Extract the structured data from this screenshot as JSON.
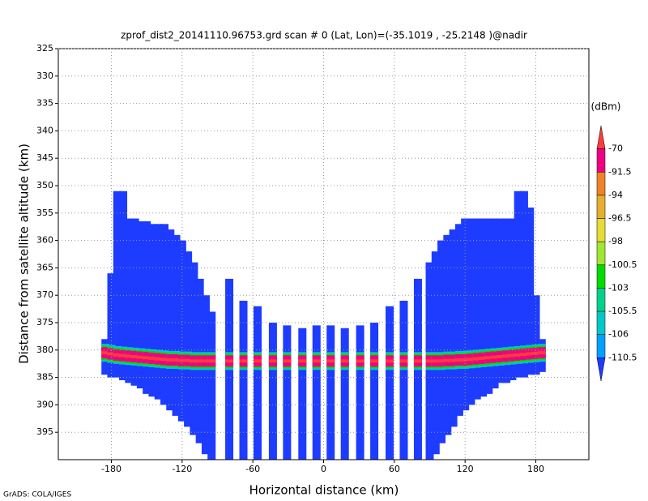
{
  "chart_data": {
    "type": "swath",
    "title": "zprof_dist2_20141110.96753.grd  scan # 0  (Lat, Lon)=(-35.1019 , -25.2148 )@nadir",
    "x_label": "Horizontal distance (km)",
    "y_label": "Distance from satellite altitude (km)",
    "colorbar_title": "(dBm)",
    "footer": "GrADS: COLA/IGES",
    "xlim": [
      -225,
      225
    ],
    "xticks": [
      -180,
      -120,
      -60,
      0,
      60,
      120,
      180
    ],
    "ylim": [
      325,
      400
    ],
    "yticks": [
      325,
      330,
      335,
      340,
      345,
      350,
      355,
      360,
      365,
      370,
      375,
      380,
      385,
      390,
      395
    ],
    "y_inverted": true,
    "grid": true,
    "levels": [
      -70,
      -91.5,
      -94,
      -96.5,
      -98,
      -100.5,
      -103,
      -105.5,
      -106,
      -110.5
    ],
    "colors": [
      "#fa3c3c",
      "#f00082",
      "#f08228",
      "#e6af2d",
      "#e6dc32",
      "#a0e632",
      "#00dc00",
      "#00d28c",
      "#00c8c8",
      "#00a0ff",
      "#1e3cff"
    ],
    "x": [
      -185,
      -180,
      -175,
      -170,
      -165,
      -160,
      -155,
      -150,
      -145,
      -140,
      -135,
      -130,
      -125,
      -120,
      -115,
      -110,
      -105,
      -100,
      -95,
      -80,
      -68,
      -56,
      -43,
      -31,
      -18,
      -6,
      6,
      18,
      31,
      43,
      56,
      68,
      80,
      90,
      95,
      100,
      105,
      110,
      115,
      120,
      125,
      130,
      135,
      140,
      145,
      150,
      155,
      160,
      165,
      170,
      175,
      180,
      185
    ],
    "top": [
      378,
      366,
      351,
      351,
      356,
      356,
      356.5,
      356.5,
      357,
      357,
      357,
      358,
      359,
      360,
      362,
      364,
      367,
      370,
      373,
      367,
      371,
      372,
      375,
      375.5,
      376,
      375.5,
      375.5,
      376,
      375.5,
      375,
      372,
      371,
      367,
      364,
      362,
      360,
      359,
      358,
      357,
      356,
      356,
      356,
      356,
      356,
      356,
      356,
      356,
      356,
      351,
      351,
      354,
      370,
      378
    ],
    "bottom": [
      384.5,
      385,
      385,
      385.5,
      386,
      386.5,
      387,
      388,
      388.5,
      389,
      390,
      391,
      392,
      393,
      394,
      395.5,
      397,
      399,
      400,
      400,
      400,
      400,
      400,
      400,
      400,
      400,
      400,
      400,
      400,
      400,
      400,
      400,
      400,
      400,
      399,
      397,
      395.5,
      394,
      392,
      391,
      390,
      389,
      388.5,
      388,
      387,
      386,
      386,
      385.5,
      385,
      385,
      384.5,
      384.5,
      384
    ],
    "band_alt": [
      380.5,
      380.7,
      380.9,
      381,
      381.1,
      381.2,
      381.3,
      381.4,
      381.5,
      381.6,
      381.7,
      381.8,
      381.8,
      381.9,
      381.9,
      382,
      382,
      382,
      382,
      382,
      382,
      382,
      382,
      382,
      382,
      382,
      382,
      382,
      382,
      382,
      382,
      382,
      382,
      382,
      382,
      382,
      381.9,
      381.9,
      381.8,
      381.8,
      381.7,
      381.6,
      381.5,
      381.4,
      381.3,
      381.2,
      381.1,
      381,
      380.9,
      380.8,
      380.7,
      380.6,
      380.5
    ]
  }
}
